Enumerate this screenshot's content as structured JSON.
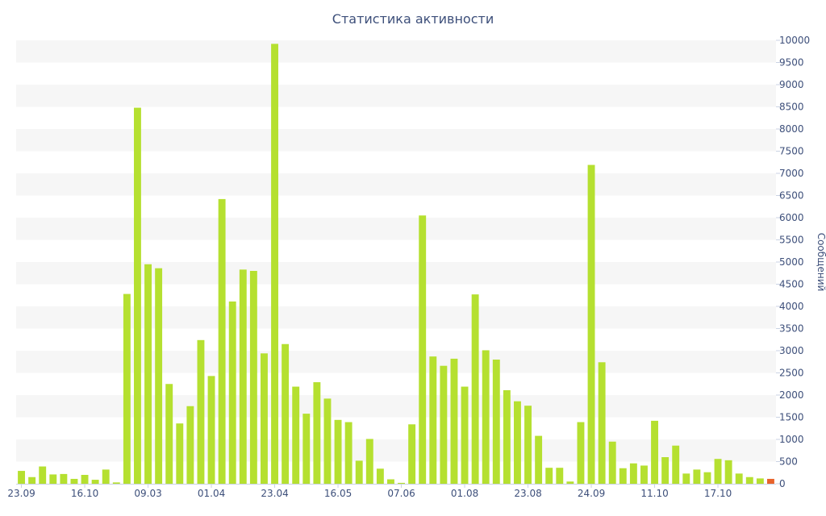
{
  "chart_data": {
    "type": "bar",
    "title": "Статистика активности",
    "xlabel": "",
    "ylabel": "Сообщений",
    "ylim": [
      0,
      10000
    ],
    "y_ticks": [
      0,
      500,
      1000,
      1500,
      2000,
      2500,
      3000,
      3500,
      4000,
      4500,
      5000,
      5500,
      6000,
      6500,
      7000,
      7500,
      8000,
      8500,
      9000,
      9500,
      10000
    ],
    "y_axis_side": "right",
    "grid": "alternating horizontal bands",
    "x_tick_labels": [
      {
        "index": 0,
        "label": "23.09"
      },
      {
        "index": 6,
        "label": "16.10"
      },
      {
        "index": 12,
        "label": "09.03"
      },
      {
        "index": 18,
        "label": "01.04"
      },
      {
        "index": 24,
        "label": "23.04"
      },
      {
        "index": 30,
        "label": "16.05"
      },
      {
        "index": 36,
        "label": "07.06"
      },
      {
        "index": 42,
        "label": "01.08"
      },
      {
        "index": 48,
        "label": "23.08"
      },
      {
        "index": 54,
        "label": "24.09"
      },
      {
        "index": 60,
        "label": "11.10"
      },
      {
        "index": 66,
        "label": "17.10"
      }
    ],
    "values": [
      290,
      150,
      390,
      210,
      220,
      110,
      200,
      90,
      320,
      30,
      4280,
      8480,
      4950,
      4860,
      2250,
      1360,
      1750,
      3240,
      2430,
      6420,
      4110,
      4830,
      4800,
      2940,
      9920,
      3150,
      2190,
      1580,
      2290,
      1920,
      1440,
      1390,
      520,
      1010,
      340,
      100,
      20,
      1340,
      6050,
      2870,
      2660,
      2820,
      2190,
      4270,
      3010,
      2800,
      2110,
      1860,
      1760,
      1080,
      360,
      360,
      50,
      1390,
      7190,
      2740,
      950,
      350,
      460,
      410,
      1420,
      600,
      860,
      230,
      320,
      260,
      560,
      530,
      230,
      150,
      120,
      110
    ],
    "bar_color": "#b5e030",
    "highlight_color": "#e8632b",
    "highlight_index": 71
  }
}
